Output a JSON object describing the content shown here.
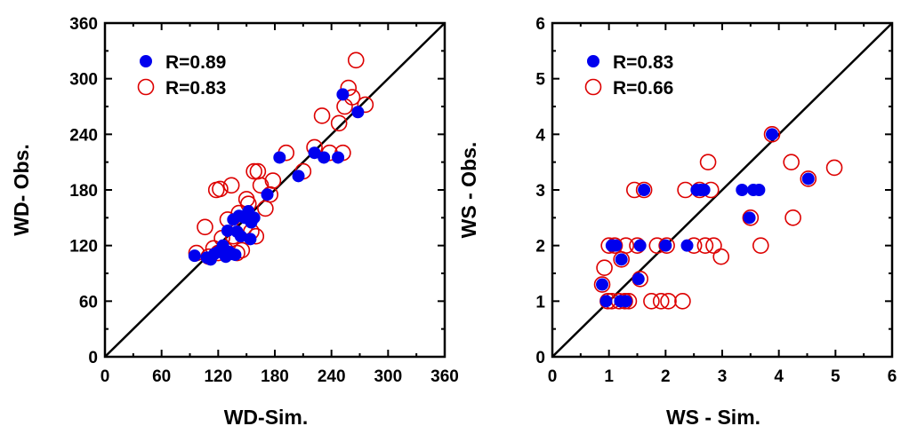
{
  "chart_data": [
    {
      "type": "scatter",
      "xlabel": "WD-Sim.",
      "ylabel": "WD- Obs.",
      "xlim": [
        0,
        360
      ],
      "ylim": [
        0,
        360
      ],
      "xticks": [
        "0",
        "60",
        "120",
        "180",
        "240",
        "300",
        "360"
      ],
      "yticks": [
        "0",
        "60",
        "120",
        "180",
        "240",
        "300",
        "360"
      ],
      "grid": false,
      "legend_position": "top-left",
      "reference_line": "1:1",
      "colors": {
        "filled": "#0000ee",
        "open": "#dd0000",
        "line": "#000000"
      },
      "series": [
        {
          "name": "R=0.89",
          "marker": "filled-circle",
          "points": [
            [
              95,
              109
            ],
            [
              108,
              107
            ],
            [
              112,
              105
            ],
            [
              116,
              111
            ],
            [
              120,
              113
            ],
            [
              125,
              120
            ],
            [
              128,
              108
            ],
            [
              130,
              136
            ],
            [
              132,
              113
            ],
            [
              134,
              111
            ],
            [
              136,
              148
            ],
            [
              138,
              110
            ],
            [
              140,
              135
            ],
            [
              142,
              152
            ],
            [
              144,
              130
            ],
            [
              148,
              150
            ],
            [
              152,
              157
            ],
            [
              155,
              145
            ],
            [
              154,
              127
            ],
            [
              158,
              150
            ],
            [
              172,
              175
            ],
            [
              185,
              215
            ],
            [
              205,
              195
            ],
            [
              222,
              220
            ],
            [
              232,
              215
            ],
            [
              247,
              215
            ],
            [
              252,
              283
            ],
            [
              268,
              264
            ]
          ]
        },
        {
          "name": "R=0.83",
          "marker": "open-circle",
          "points": [
            [
              97,
              112
            ],
            [
              106,
              140
            ],
            [
              110,
              108
            ],
            [
              115,
              117
            ],
            [
              118,
              180
            ],
            [
              120,
              112
            ],
            [
              122,
              181
            ],
            [
              124,
              128
            ],
            [
              128,
              115
            ],
            [
              130,
              148
            ],
            [
              134,
              185
            ],
            [
              136,
              130
            ],
            [
              140,
              112
            ],
            [
              142,
              155
            ],
            [
              145,
              115
            ],
            [
              148,
              140
            ],
            [
              150,
              170
            ],
            [
              152,
              165
            ],
            [
              155,
              135
            ],
            [
              158,
              200
            ],
            [
              160,
              130
            ],
            [
              162,
              200
            ],
            [
              165,
              185
            ],
            [
              170,
              160
            ],
            [
              175,
              175
            ],
            [
              178,
              190
            ],
            [
              192,
              220
            ],
            [
              210,
              200
            ],
            [
              222,
              226
            ],
            [
              230,
              260
            ],
            [
              238,
              220
            ],
            [
              248,
              252
            ],
            [
              252,
              220
            ],
            [
              254,
              270
            ],
            [
              258,
              290
            ],
            [
              262,
              280
            ],
            [
              266,
              320
            ],
            [
              276,
              272
            ]
          ]
        }
      ]
    },
    {
      "type": "scatter",
      "xlabel": "WS - Sim.",
      "ylabel": "WS - Obs.",
      "xlim": [
        0,
        6
      ],
      "ylim": [
        0,
        6
      ],
      "xticks": [
        "0",
        "1",
        "2",
        "3",
        "4",
        "5",
        "6"
      ],
      "yticks": [
        "0",
        "1",
        "2",
        "3",
        "4",
        "5",
        "6"
      ],
      "grid": false,
      "legend_position": "top-left",
      "reference_line": "1:1",
      "colors": {
        "filled": "#0000ee",
        "open": "#dd0000",
        "line": "#000000"
      },
      "series": [
        {
          "name": "R=0.83",
          "marker": "filled-circle",
          "points": [
            [
              0.88,
              1.3
            ],
            [
              0.95,
              1.0
            ],
            [
              1.05,
              2.0
            ],
            [
              1.12,
              2.0
            ],
            [
              1.2,
              1.0
            ],
            [
              1.22,
              1.75
            ],
            [
              1.3,
              1.0
            ],
            [
              1.52,
              1.4
            ],
            [
              1.55,
              2.0
            ],
            [
              1.62,
              3.0
            ],
            [
              2.0,
              2.0
            ],
            [
              2.38,
              2.0
            ],
            [
              2.55,
              3.0
            ],
            [
              2.62,
              3.0
            ],
            [
              2.68,
              3.0
            ],
            [
              3.35,
              3.0
            ],
            [
              3.48,
              2.5
            ],
            [
              3.55,
              3.0
            ],
            [
              3.65,
              3.0
            ],
            [
              3.88,
              4.0
            ],
            [
              4.52,
              3.2
            ]
          ]
        },
        {
          "name": "R=0.66",
          "marker": "open-circle",
          "points": [
            [
              0.88,
              1.3
            ],
            [
              0.92,
              1.6
            ],
            [
              0.98,
              1.0
            ],
            [
              1.0,
              2.0
            ],
            [
              1.05,
              1.0
            ],
            [
              1.1,
              2.0
            ],
            [
              1.18,
              1.0
            ],
            [
              1.22,
              1.75
            ],
            [
              1.28,
              1.0
            ],
            [
              1.3,
              2.0
            ],
            [
              1.35,
              1.0
            ],
            [
              1.45,
              3.0
            ],
            [
              1.5,
              2.0
            ],
            [
              1.55,
              1.4
            ],
            [
              1.62,
              3.0
            ],
            [
              1.75,
              1.0
            ],
            [
              1.85,
              2.0
            ],
            [
              1.92,
              1.0
            ],
            [
              2.02,
              2.0
            ],
            [
              2.05,
              1.0
            ],
            [
              2.3,
              1.0
            ],
            [
              2.35,
              3.0
            ],
            [
              2.5,
              2.0
            ],
            [
              2.6,
              3.0
            ],
            [
              2.7,
              2.0
            ],
            [
              2.75,
              3.5
            ],
            [
              2.8,
              3.0
            ],
            [
              2.85,
              2.0
            ],
            [
              2.98,
              1.8
            ],
            [
              3.5,
              2.5
            ],
            [
              3.68,
              2.0
            ],
            [
              3.88,
              4.0
            ],
            [
              4.22,
              3.5
            ],
            [
              4.25,
              2.5
            ],
            [
              4.52,
              3.2
            ],
            [
              4.98,
              3.4
            ]
          ]
        }
      ]
    }
  ]
}
